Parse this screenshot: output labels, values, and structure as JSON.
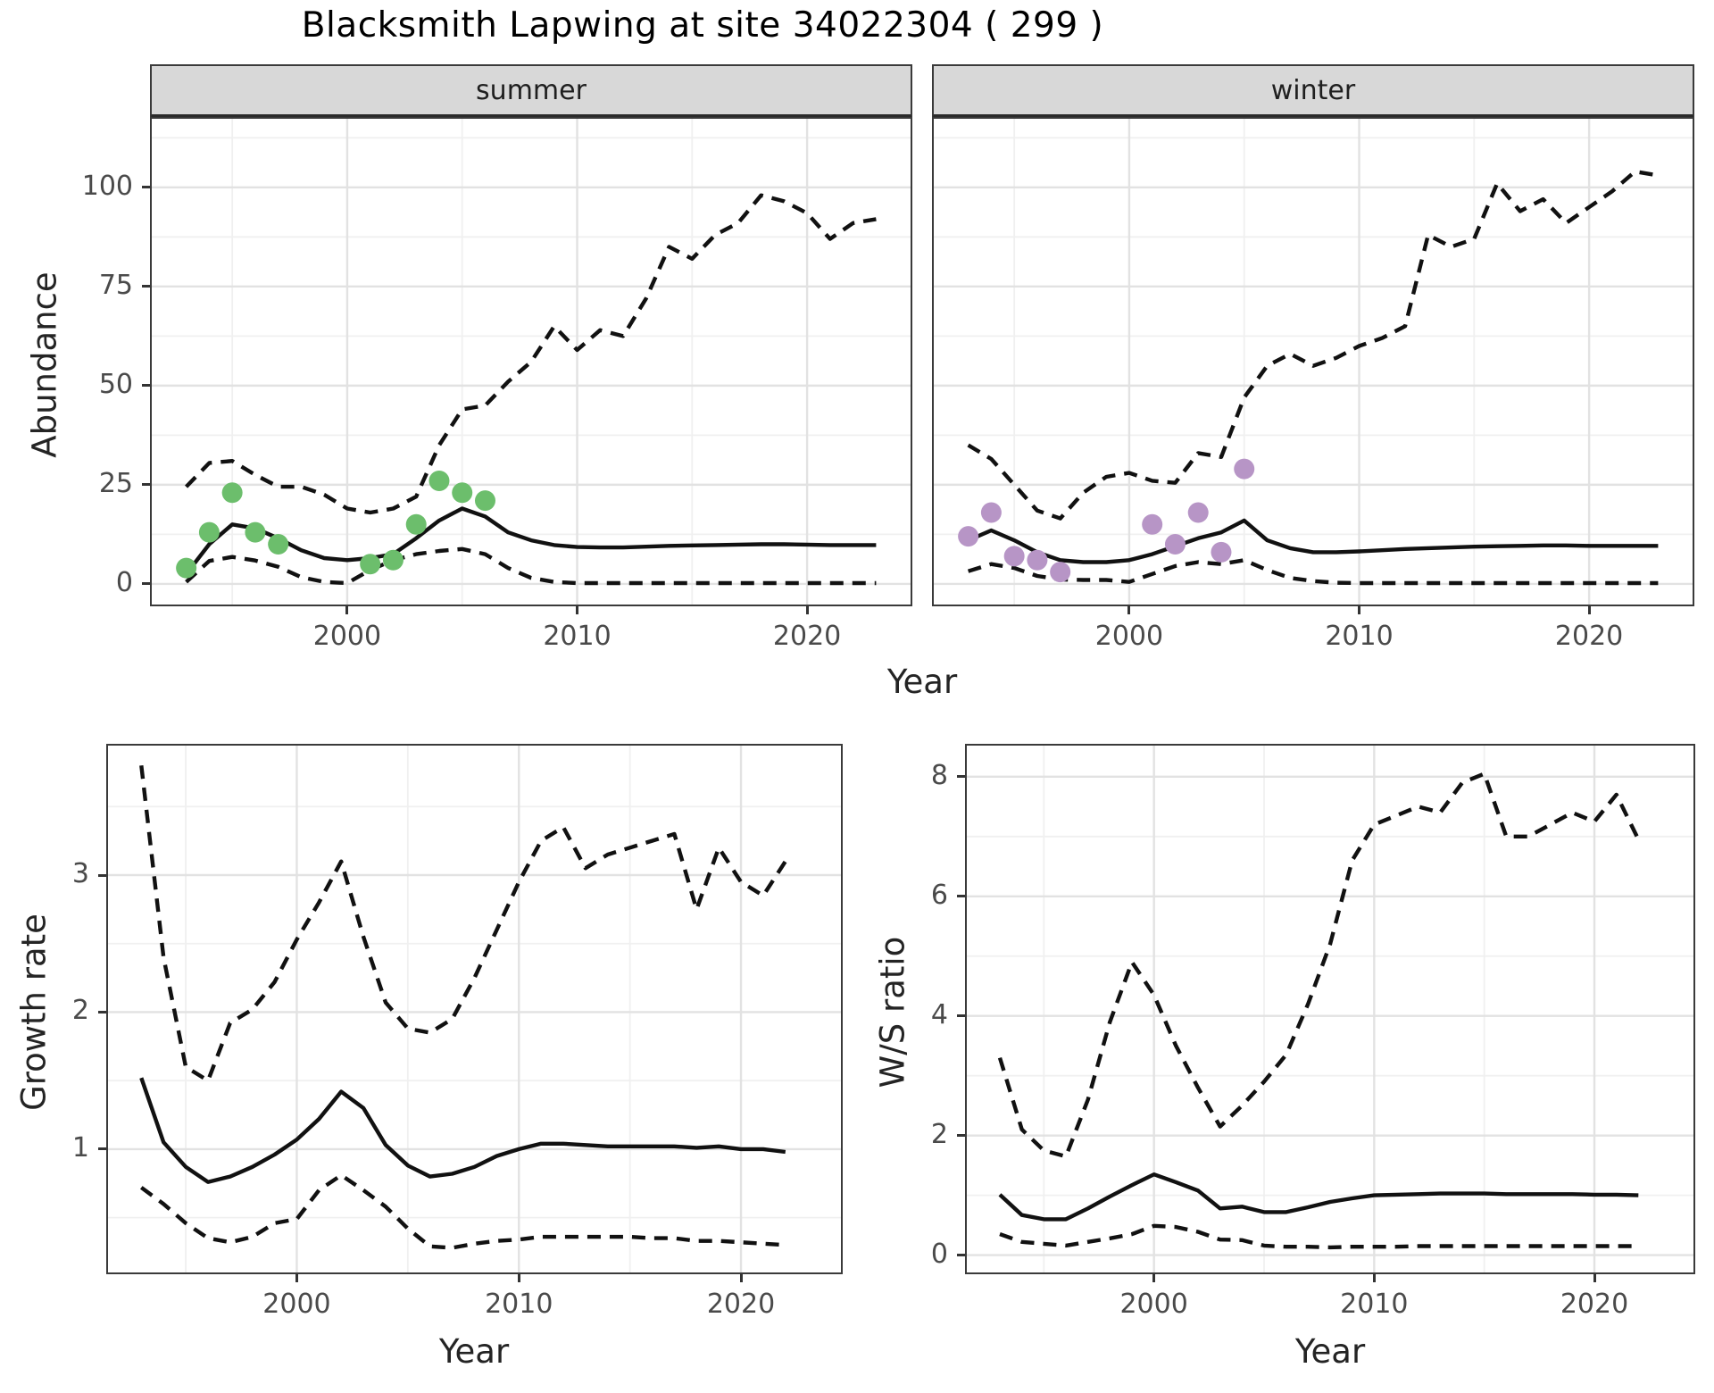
{
  "title": "Blacksmith Lapwing at site 34022304 ( 299 )",
  "labels": {
    "y_top": "Abundance",
    "x_top": "Year",
    "y_growth": "Growth rate",
    "x_growth": "Year",
    "y_ratio": "W/S ratio",
    "x_ratio": "Year"
  },
  "colors": {
    "summer_points": "#6cbe6c",
    "winter_points": "#b795c6",
    "line": "#111111",
    "grid_major": "#e2e2e2",
    "grid_minor": "#f0f0f0",
    "panel_border": "#3a3a3a",
    "strip_bg": "#d8d8d8"
  },
  "chart_data": [
    {
      "id": "summer",
      "type": "line",
      "facet": "summer",
      "xlabel": "Year",
      "ylabel": "Abundance",
      "axis": {
        "xlim": [
          1991.5,
          2024.5
        ],
        "ylim": [
          -5.2,
          117.3
        ],
        "x_ticks": [
          2000,
          2010,
          2020
        ],
        "x_tick_labels": [
          "2000",
          "2010",
          "2020"
        ],
        "x_minor": [
          1995,
          2005,
          2015
        ],
        "y_ticks": [
          0,
          25,
          50,
          75,
          100
        ],
        "y_tick_labels": [
          "0",
          "25",
          "50",
          "75",
          "100"
        ],
        "y_minor": [
          12.5,
          37.5,
          62.5,
          87.5,
          112.5
        ]
      },
      "series": [
        {
          "name": "median",
          "style": "solid",
          "x": [
            1993,
            1994,
            1995,
            1996,
            1997,
            1998,
            1999,
            2000,
            2001,
            2002,
            2003,
            2004,
            2005,
            2006,
            2007,
            2008,
            2009,
            2010,
            2011,
            2012,
            2013,
            2014,
            2015,
            2016,
            2017,
            2018,
            2019,
            2020,
            2021,
            2022,
            2023
          ],
          "y": [
            2.5,
            10,
            15,
            14,
            11.5,
            8.5,
            6.5,
            6,
            6.5,
            7.5,
            11.5,
            16,
            19,
            17,
            13,
            11,
            9.8,
            9.3,
            9.2,
            9.2,
            9.4,
            9.6,
            9.7,
            9.8,
            9.9,
            10,
            10,
            9.9,
            9.8,
            9.8,
            9.8
          ]
        },
        {
          "name": "upper_ci",
          "style": "dashed",
          "x": [
            1993,
            1994,
            1995,
            1996,
            1997,
            1998,
            1999,
            2000,
            2001,
            2002,
            2003,
            2004,
            2005,
            2006,
            2007,
            2008,
            2009,
            2010,
            2011,
            2012,
            2013,
            2014,
            2015,
            2016,
            2017,
            2018,
            2019,
            2020,
            2021,
            2022,
            2023
          ],
          "y": [
            24.5,
            30.5,
            31,
            27.5,
            24.5,
            24.5,
            22.5,
            19,
            18,
            19,
            22,
            35,
            44,
            45,
            51,
            56,
            65,
            59,
            64,
            62.5,
            72,
            85,
            82,
            88,
            91,
            98,
            96.5,
            93.5,
            87,
            91,
            92
          ]
        },
        {
          "name": "lower_ci",
          "style": "dashed",
          "x": [
            1993,
            1994,
            1995,
            1996,
            1997,
            1998,
            1999,
            2000,
            2001,
            2002,
            2003,
            2004,
            2005,
            2006,
            2007,
            2008,
            2009,
            2010,
            2011,
            2012,
            2013,
            2014,
            2015,
            2016,
            2017,
            2018,
            2019,
            2020,
            2021,
            2022,
            2023
          ],
          "y": [
            0.5,
            5.8,
            6.8,
            5.9,
            4.3,
            1.7,
            0.5,
            0.2,
            3.5,
            6,
            7.5,
            8.3,
            8.8,
            7.5,
            4,
            1.5,
            0.5,
            0.2,
            0.2,
            0.2,
            0.2,
            0.2,
            0.2,
            0.2,
            0.2,
            0.2,
            0.2,
            0.2,
            0.2,
            0.2,
            0.2
          ]
        },
        {
          "name": "observations",
          "style": "points",
          "color": "#6cbe6c",
          "x": [
            1993,
            1994,
            1995,
            1996,
            1997,
            2001,
            2002,
            2003,
            2004,
            2005,
            2006
          ],
          "y": [
            4,
            13,
            23,
            13,
            10,
            5,
            6,
            15,
            26,
            23,
            21
          ]
        }
      ]
    },
    {
      "id": "winter",
      "type": "line",
      "facet": "winter",
      "xlabel": "Year",
      "ylabel": "Abundance",
      "axis": {
        "xlim": [
          1991.5,
          2024.5
        ],
        "ylim": [
          -5.2,
          117.3
        ],
        "x_ticks": [
          2000,
          2010,
          2020
        ],
        "x_tick_labels": [
          "2000",
          "2010",
          "2020"
        ],
        "x_minor": [
          1995,
          2005,
          2015
        ],
        "y_ticks": [
          0,
          25,
          50,
          75,
          100
        ],
        "y_tick_labels": [],
        "y_minor": [
          12.5,
          37.5,
          62.5,
          87.5,
          112.5
        ]
      },
      "series": [
        {
          "name": "median",
          "style": "solid",
          "x": [
            1993,
            1994,
            1995,
            1996,
            1997,
            1998,
            1999,
            2000,
            2001,
            2002,
            2003,
            2004,
            2005,
            2006,
            2007,
            2008,
            2009,
            2010,
            2011,
            2012,
            2013,
            2014,
            2015,
            2016,
            2017,
            2018,
            2019,
            2020,
            2021,
            2022,
            2023
          ],
          "y": [
            11,
            13.5,
            11,
            8,
            6,
            5.5,
            5.5,
            6,
            7.5,
            9.5,
            11.5,
            13,
            16,
            11,
            9,
            8,
            8,
            8.2,
            8.5,
            8.8,
            9,
            9.2,
            9.4,
            9.5,
            9.6,
            9.7,
            9.7,
            9.6,
            9.6,
            9.6,
            9.6
          ]
        },
        {
          "name": "upper_ci",
          "style": "dashed",
          "x": [
            1993,
            1994,
            1995,
            1996,
            1997,
            1998,
            1999,
            2000,
            2001,
            2002,
            2003,
            2004,
            2005,
            2006,
            2007,
            2008,
            2009,
            2010,
            2011,
            2012,
            2013,
            2014,
            2015,
            2016,
            2017,
            2018,
            2019,
            2020,
            2021,
            2022,
            2023
          ],
          "y": [
            35,
            31.5,
            25,
            18.5,
            16.5,
            23,
            27,
            28,
            26,
            25.5,
            33,
            32,
            47,
            55,
            58,
            55,
            57,
            60,
            62,
            65,
            88,
            85,
            87,
            101,
            94,
            97,
            91,
            95,
            99,
            104,
            103
          ]
        },
        {
          "name": "lower_ci",
          "style": "dashed",
          "x": [
            1993,
            1994,
            1995,
            1996,
            1997,
            1998,
            1999,
            2000,
            2001,
            2002,
            2003,
            2004,
            2005,
            2006,
            2007,
            2008,
            2009,
            2010,
            2011,
            2012,
            2013,
            2014,
            2015,
            2016,
            2017,
            2018,
            2019,
            2020,
            2021,
            2022,
            2023
          ],
          "y": [
            3.2,
            5,
            4,
            2,
            1.1,
            1,
            1,
            0.5,
            2.5,
            4.5,
            5.5,
            5,
            6,
            3.5,
            1.5,
            0.7,
            0.3,
            0.2,
            0.2,
            0.2,
            0.2,
            0.2,
            0.2,
            0.2,
            0.2,
            0.2,
            0.2,
            0.2,
            0.2,
            0.2,
            0.2
          ]
        },
        {
          "name": "observations",
          "style": "points",
          "color": "#b795c6",
          "x": [
            1993,
            1994,
            1995,
            1996,
            1997,
            2001,
            2002,
            2003,
            2004,
            2005
          ],
          "y": [
            12,
            18,
            7,
            6,
            3,
            15,
            10,
            18,
            8,
            29
          ]
        }
      ]
    },
    {
      "id": "growth",
      "type": "line",
      "facet": "",
      "xlabel": "Year",
      "ylabel": "Growth rate",
      "axis": {
        "xlim": [
          1991.5,
          2024.5
        ],
        "ylim": [
          0.1,
          3.945
        ],
        "x_ticks": [
          2000,
          2010,
          2020
        ],
        "x_tick_labels": [
          "2000",
          "2010",
          "2020"
        ],
        "x_minor": [
          1995,
          2005,
          2015
        ],
        "y_ticks": [
          1,
          2,
          3
        ],
        "y_tick_labels": [
          "1",
          "2",
          "3"
        ],
        "y_minor": [
          0.5,
          1.5,
          2.5,
          3.5
        ]
      },
      "series": [
        {
          "name": "median",
          "style": "solid",
          "x": [
            1993,
            1994,
            1995,
            1996,
            1997,
            1998,
            1999,
            2000,
            2001,
            2002,
            2003,
            2004,
            2005,
            2006,
            2007,
            2008,
            2009,
            2010,
            2011,
            2012,
            2013,
            2014,
            2015,
            2016,
            2017,
            2018,
            2019,
            2020,
            2021,
            2022
          ],
          "y": [
            1.52,
            1.05,
            0.87,
            0.76,
            0.8,
            0.87,
            0.96,
            1.07,
            1.22,
            1.42,
            1.3,
            1.03,
            0.88,
            0.8,
            0.82,
            0.87,
            0.95,
            1.0,
            1.04,
            1.04,
            1.03,
            1.02,
            1.02,
            1.02,
            1.02,
            1.01,
            1.02,
            1.0,
            1.0,
            0.98
          ]
        },
        {
          "name": "upper_ci",
          "style": "dashed",
          "x": [
            1993,
            1994,
            1995,
            1996,
            1997,
            1998,
            1999,
            2000,
            2001,
            2002,
            2003,
            2004,
            2005,
            2006,
            2007,
            2008,
            2009,
            2010,
            2011,
            2012,
            2013,
            2014,
            2015,
            2016,
            2017,
            2018,
            2019,
            2020,
            2021,
            2022
          ],
          "y": [
            3.8,
            2.4,
            1.6,
            1.5,
            1.92,
            2.02,
            2.22,
            2.53,
            2.8,
            3.1,
            2.55,
            2.07,
            1.88,
            1.85,
            1.95,
            2.25,
            2.6,
            2.95,
            3.25,
            3.35,
            3.05,
            3.15,
            3.2,
            3.25,
            3.3,
            2.75,
            3.2,
            2.95,
            2.85,
            3.1
          ]
        },
        {
          "name": "lower_ci",
          "style": "dashed",
          "x": [
            1993,
            1994,
            1995,
            1996,
            1997,
            1998,
            1999,
            2000,
            2001,
            2002,
            2003,
            2004,
            2005,
            2006,
            2007,
            2008,
            2009,
            2010,
            2011,
            2012,
            2013,
            2014,
            2015,
            2016,
            2017,
            2018,
            2019,
            2020,
            2021,
            2022
          ],
          "y": [
            0.72,
            0.6,
            0.46,
            0.35,
            0.32,
            0.36,
            0.46,
            0.49,
            0.7,
            0.81,
            0.7,
            0.58,
            0.42,
            0.29,
            0.28,
            0.31,
            0.33,
            0.34,
            0.36,
            0.36,
            0.36,
            0.36,
            0.36,
            0.35,
            0.35,
            0.33,
            0.33,
            0.32,
            0.31,
            0.3
          ]
        }
      ]
    },
    {
      "id": "ratio",
      "type": "line",
      "facet": "",
      "xlabel": "Year",
      "ylabel": "W/S ratio",
      "axis": {
        "xlim": [
          1991.5,
          2024.5
        ],
        "ylim": [
          -0.29,
          8.52
        ],
        "x_ticks": [
          2000,
          2010,
          2020
        ],
        "x_tick_labels": [
          "2000",
          "2010",
          "2020"
        ],
        "x_minor": [
          1995,
          2005,
          2015
        ],
        "y_ticks": [
          0,
          2,
          4,
          6,
          8
        ],
        "y_tick_labels": [
          "0",
          "2",
          "4",
          "6",
          "8"
        ],
        "y_minor": [
          1,
          3,
          5,
          7
        ]
      },
      "series": [
        {
          "name": "median",
          "style": "solid",
          "x": [
            1993,
            1994,
            1995,
            1996,
            1997,
            1998,
            1999,
            2000,
            2001,
            2002,
            2003,
            2004,
            2005,
            2006,
            2007,
            2008,
            2009,
            2010,
            2011,
            2012,
            2013,
            2014,
            2015,
            2016,
            2017,
            2018,
            2019,
            2020,
            2021,
            2022
          ],
          "y": [
            1.01,
            0.67,
            0.6,
            0.6,
            0.78,
            0.98,
            1.17,
            1.35,
            1.22,
            1.08,
            0.78,
            0.81,
            0.72,
            0.72,
            0.8,
            0.89,
            0.95,
            1.0,
            1.01,
            1.02,
            1.03,
            1.03,
            1.03,
            1.02,
            1.02,
            1.02,
            1.02,
            1.01,
            1.01,
            1.0
          ]
        },
        {
          "name": "upper_ci",
          "style": "dashed",
          "x": [
            1993,
            1994,
            1995,
            1996,
            1997,
            1998,
            1999,
            2000,
            2001,
            2002,
            2003,
            2004,
            2005,
            2006,
            2007,
            2008,
            2009,
            2010,
            2011,
            2012,
            2013,
            2014,
            2015,
            2016,
            2017,
            2018,
            2019,
            2020,
            2021,
            2022
          ],
          "y": [
            3.3,
            2.1,
            1.75,
            1.65,
            2.6,
            3.9,
            4.9,
            4.35,
            3.5,
            2.8,
            2.15,
            2.5,
            2.9,
            3.35,
            4.2,
            5.2,
            6.6,
            7.2,
            7.35,
            7.5,
            7.4,
            7.9,
            8.05,
            7.0,
            7.0,
            7.2,
            7.4,
            7.25,
            7.7,
            6.95
          ]
        },
        {
          "name": "lower_ci",
          "style": "dashed",
          "x": [
            1993,
            1994,
            1995,
            1996,
            1997,
            1998,
            1999,
            2000,
            2001,
            2002,
            2003,
            2004,
            2005,
            2006,
            2007,
            2008,
            2009,
            2010,
            2011,
            2012,
            2013,
            2014,
            2015,
            2016,
            2017,
            2018,
            2019,
            2020,
            2021,
            2022
          ],
          "y": [
            0.35,
            0.22,
            0.19,
            0.16,
            0.22,
            0.28,
            0.35,
            0.49,
            0.47,
            0.39,
            0.26,
            0.25,
            0.16,
            0.14,
            0.14,
            0.13,
            0.14,
            0.14,
            0.14,
            0.15,
            0.15,
            0.15,
            0.15,
            0.15,
            0.15,
            0.15,
            0.15,
            0.15,
            0.15,
            0.15
          ]
        }
      ]
    }
  ]
}
